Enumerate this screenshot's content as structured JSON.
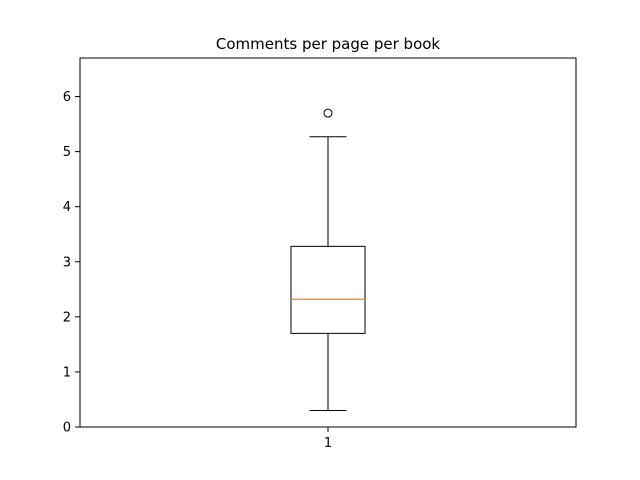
{
  "chart_data": {
    "type": "box",
    "title": "Comments per page per book",
    "xlabel": "",
    "ylabel": "",
    "ylim": [
      0,
      6.7
    ],
    "y_ticks": [
      0,
      1,
      2,
      3,
      4,
      5,
      6
    ],
    "y_tick_labels": [
      "0",
      "1",
      "2",
      "3",
      "4",
      "5",
      "6"
    ],
    "x_tick_labels": [
      "1"
    ],
    "grid": false,
    "boxes": [
      {
        "label": "1",
        "whisker_low": 0.3,
        "q1": 1.7,
        "median": 2.32,
        "q3": 3.28,
        "whisker_high": 5.27,
        "outliers": [
          5.7
        ]
      }
    ],
    "colors": {
      "box": "#000000",
      "median": "#ff7f0e",
      "whisker": "#000000",
      "outlier": "#000000"
    }
  }
}
